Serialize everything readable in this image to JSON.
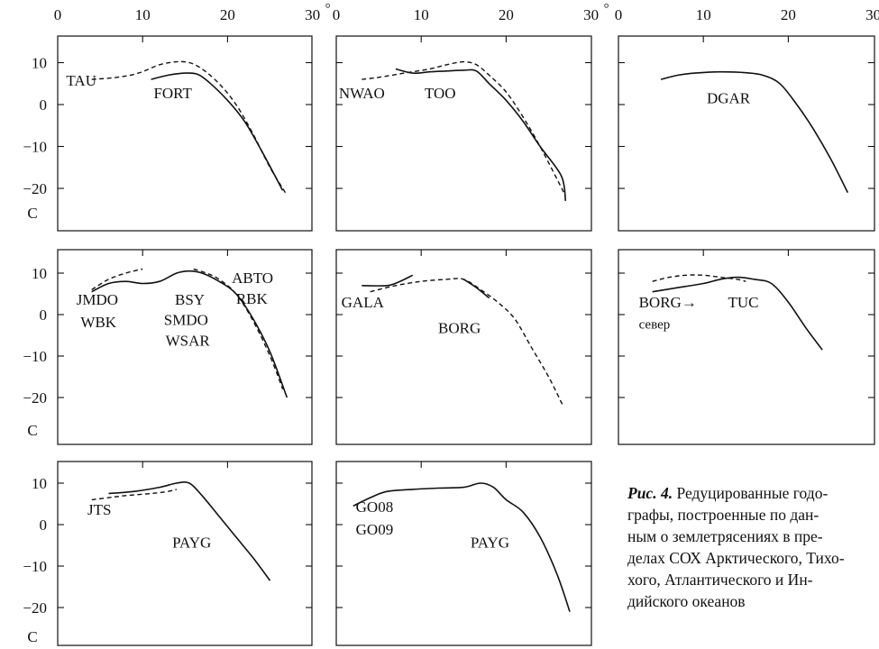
{
  "figure": {
    "x_axis_ticks": [
      "0",
      "10",
      "20",
      "30"
    ],
    "x_axis_unit": "°",
    "y_axis_ticks": [
      "10",
      "0",
      "−10",
      "−20"
    ],
    "y_axis_label": "C",
    "caption": {
      "lead": "Рис. 4.",
      "lines": [
        " Редуцированные годо-",
        "графы, построенные по дан-",
        "ным о землетрясениях в пре-",
        "делах СОХ Арктического, Тихо-",
        "хого, Атлантического и Ин-",
        "дийского океанов"
      ]
    }
  },
  "chart_data": [
    {
      "type": "line",
      "panel": "row1-col1",
      "xlim": [
        0,
        30
      ],
      "ylim": [
        -25,
        15
      ],
      "labels": [
        {
          "text": "TAU",
          "x": 1.0,
          "y": 4.5
        },
        {
          "text": "FORT",
          "x": 11.3,
          "y": 1.5
        }
      ],
      "series": [
        {
          "style": "dashed",
          "points": [
            [
              4,
              6
            ],
            [
              7,
              6.5
            ],
            [
              9.5,
              7.5
            ],
            [
              12,
              9.5
            ],
            [
              14,
              10.2
            ],
            [
              15.5,
              10
            ],
            [
              17,
              8.5
            ],
            [
              19,
              5
            ],
            [
              21,
              0
            ],
            [
              23,
              -7
            ],
            [
              25,
              -15
            ],
            [
              26.8,
              -21
            ]
          ]
        },
        {
          "style": "solid",
          "points": [
            [
              11,
              6
            ],
            [
              13,
              7
            ],
            [
              15,
              7.5
            ],
            [
              16.5,
              7.2
            ],
            [
              18,
              5
            ],
            [
              20,
              1
            ],
            [
              22,
              -4
            ],
            [
              24,
              -11
            ],
            [
              26.5,
              -20.5
            ]
          ]
        }
      ]
    },
    {
      "type": "line",
      "panel": "row1-col2",
      "xlim": [
        0,
        30
      ],
      "ylim": [
        -25,
        15
      ],
      "labels": [
        {
          "text": "NWAO",
          "x": 0.3,
          "y": 1.5
        },
        {
          "text": "TOO",
          "x": 10.4,
          "y": 1.5
        }
      ],
      "series": [
        {
          "style": "dashed",
          "points": [
            [
              3,
              6
            ],
            [
              5,
              6.5
            ],
            [
              8,
              7.5
            ],
            [
              11,
              8.5
            ],
            [
              13,
              9.5
            ],
            [
              15,
              10.2
            ],
            [
              16.5,
              9.5
            ],
            [
              18,
              7
            ],
            [
              20,
              3
            ],
            [
              22,
              -3
            ],
            [
              24,
              -10
            ],
            [
              26.8,
              -21
            ]
          ]
        },
        {
          "style": "solid",
          "points": [
            [
              7,
              8.5
            ],
            [
              9,
              7.5
            ],
            [
              11,
              7.8
            ],
            [
              13,
              8
            ],
            [
              15,
              8.2
            ],
            [
              16.5,
              8
            ],
            [
              18,
              5
            ],
            [
              20,
              1
            ],
            [
              22,
              -4
            ],
            [
              24,
              -10
            ],
            [
              26.5,
              -17
            ],
            [
              27,
              -23
            ]
          ]
        }
      ]
    },
    {
      "type": "line",
      "panel": "row1-col3",
      "xlim": [
        0,
        30
      ],
      "ylim": [
        -25,
        15
      ],
      "labels": [
        {
          "text": "DGAR",
          "x": 10.4,
          "y": 0.3
        }
      ],
      "series": [
        {
          "style": "solid",
          "points": [
            [
              5,
              6
            ],
            [
              7,
              7
            ],
            [
              9,
              7.5
            ],
            [
              12,
              7.8
            ],
            [
              15,
              7.6
            ],
            [
              17,
              7
            ],
            [
              19,
              5
            ],
            [
              21,
              0
            ],
            [
              23,
              -6
            ],
            [
              25,
              -13
            ],
            [
              27,
              -21
            ]
          ]
        }
      ]
    },
    {
      "type": "line",
      "panel": "row2-col1",
      "xlim": [
        0,
        30
      ],
      "ylim": [
        -25,
        15
      ],
      "labels": [
        {
          "text": "JMDO",
          "x": 2.2,
          "y": 2.4
        },
        {
          "text": "WBK",
          "x": 2.7,
          "y": -3
        },
        {
          "text": "BSY",
          "x": 13.8,
          "y": 2.4
        },
        {
          "text": "SMDO",
          "x": 12.5,
          "y": -2.5
        },
        {
          "text": "WSAR",
          "x": 12.7,
          "y": -7.5
        },
        {
          "text": "ABTO",
          "x": 20.5,
          "y": 7.6
        },
        {
          "text": "RBK",
          "x": 21.0,
          "y": 2.6
        }
      ],
      "series": [
        {
          "style": "dashed",
          "points": [
            [
              4,
              6
            ],
            [
              6,
              8.5
            ],
            [
              8,
              10
            ],
            [
              10,
              11
            ]
          ]
        },
        {
          "style": "solid",
          "points": [
            [
              4,
              5.5
            ],
            [
              6,
              7.5
            ],
            [
              8,
              8
            ],
            [
              10,
              7.5
            ],
            [
              12,
              8
            ],
            [
              14,
              10
            ],
            [
              15.5,
              10.5
            ],
            [
              17,
              10
            ],
            [
              19,
              8
            ],
            [
              21,
              5
            ],
            [
              23,
              -1
            ],
            [
              25,
              -9
            ],
            [
              27,
              -20
            ]
          ]
        },
        {
          "style": "dashed",
          "points": [
            [
              16,
              11
            ],
            [
              17.5,
              10
            ],
            [
              19,
              8.5
            ],
            [
              21,
              5
            ],
            [
              23,
              -1.5
            ],
            [
              25,
              -10
            ],
            [
              26.5,
              -18
            ]
          ]
        }
      ]
    },
    {
      "type": "line",
      "panel": "row2-col2",
      "xlim": [
        0,
        30
      ],
      "ylim": [
        -25,
        15
      ],
      "labels": [
        {
          "text": "GALA",
          "x": 0.6,
          "y": 1.7
        },
        {
          "text": "BORG",
          "x": 12.0,
          "y": -4.5
        }
      ],
      "series": [
        {
          "style": "solid",
          "points": [
            [
              3,
              7
            ],
            [
              6,
              7
            ],
            [
              7.5,
              8
            ],
            [
              9,
              9.5
            ]
          ]
        },
        {
          "style": "dashed",
          "points": [
            [
              4,
              5.5
            ],
            [
              7,
              7
            ],
            [
              10,
              8
            ],
            [
              13,
              8.5
            ],
            [
              15,
              8.5
            ],
            [
              17,
              6
            ],
            [
              19,
              3
            ],
            [
              21,
              -1
            ],
            [
              23,
              -8
            ],
            [
              25,
              -15
            ],
            [
              26.7,
              -22
            ]
          ]
        },
        {
          "style": "solid",
          "points": [
            [
              15,
              8.5
            ],
            [
              16.5,
              6.5
            ],
            [
              18,
              4
            ]
          ]
        }
      ]
    },
    {
      "type": "line",
      "panel": "row2-col3",
      "xlim": [
        0,
        30
      ],
      "ylim": [
        -25,
        15
      ],
      "labels": [
        {
          "text": "BORG→",
          "x": 2.4,
          "y": 1.7
        },
        {
          "text": "TUC",
          "x": 12.9,
          "y": 1.7
        },
        {
          "text": "север",
          "x": 2.4,
          "y": -3.4
        }
      ],
      "series": [
        {
          "style": "dashed",
          "points": [
            [
              4,
              8
            ],
            [
              6,
              9
            ],
            [
              8,
              9.5
            ],
            [
              10,
              9.5
            ],
            [
              12,
              9
            ],
            [
              14,
              8.5
            ],
            [
              15,
              8
            ]
          ]
        },
        {
          "style": "solid",
          "points": [
            [
              4,
              5.5
            ],
            [
              7,
              6.5
            ],
            [
              10,
              7.5
            ],
            [
              12,
              8.5
            ],
            [
              14,
              9
            ],
            [
              16,
              8.5
            ],
            [
              18,
              7.5
            ],
            [
              20,
              3
            ],
            [
              22,
              -3
            ],
            [
              24,
              -8.5
            ]
          ]
        }
      ]
    },
    {
      "type": "line",
      "panel": "row3-col1",
      "xlim": [
        0,
        30
      ],
      "ylim": [
        -25,
        15
      ],
      "labels": [
        {
          "text": "JTS",
          "x": 3.5,
          "y": 2.4
        },
        {
          "text": "PAYG",
          "x": 13.5,
          "y": -5.5
        }
      ],
      "series": [
        {
          "style": "dashed",
          "points": [
            [
              4,
              6
            ],
            [
              6,
              6.5
            ],
            [
              8,
              7
            ],
            [
              11,
              7.5
            ],
            [
              13,
              8
            ],
            [
              14,
              8.5
            ]
          ]
        },
        {
          "style": "solid",
          "points": [
            [
              6,
              7.5
            ],
            [
              9,
              8
            ],
            [
              12,
              9
            ],
            [
              14,
              10
            ],
            [
              15.5,
              10
            ],
            [
              17,
              7
            ],
            [
              19,
              2
            ],
            [
              21,
              -3
            ],
            [
              23,
              -8
            ],
            [
              25,
              -13.5
            ]
          ]
        }
      ]
    },
    {
      "type": "line",
      "panel": "row3-col2",
      "xlim": [
        0,
        30
      ],
      "ylim": [
        -25,
        15
      ],
      "labels": [
        {
          "text": "GO08",
          "x": 2.3,
          "y": 3
        },
        {
          "text": "GO09",
          "x": 2.3,
          "y": -2.4
        },
        {
          "text": "PAYG",
          "x": 15.8,
          "y": -5.5
        }
      ],
      "series": [
        {
          "style": "solid",
          "points": [
            [
              2,
              4.5
            ],
            [
              4,
              6.5
            ],
            [
              6,
              8
            ],
            [
              9,
              8.5
            ],
            [
              12,
              8.8
            ],
            [
              15,
              9
            ],
            [
              17,
              10
            ],
            [
              18.5,
              9
            ],
            [
              20,
              6
            ],
            [
              22,
              3
            ],
            [
              24,
              -3
            ],
            [
              26,
              -12
            ],
            [
              27.5,
              -21
            ]
          ]
        }
      ]
    }
  ]
}
